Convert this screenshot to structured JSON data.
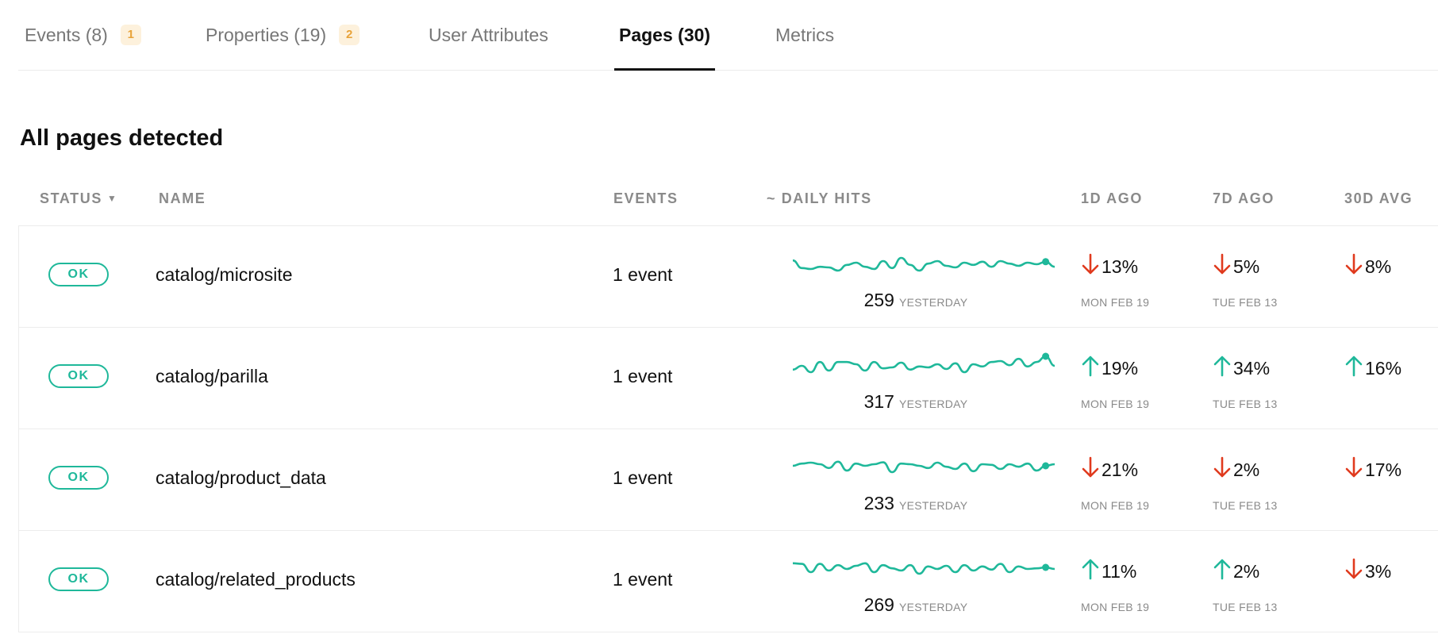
{
  "tabs": [
    {
      "label": "Events (8)",
      "badge": "1",
      "active": false
    },
    {
      "label": "Properties (19)",
      "badge": "2",
      "active": false
    },
    {
      "label": "User Attributes",
      "badge": null,
      "active": false
    },
    {
      "label": "Pages (30)",
      "badge": null,
      "active": true
    },
    {
      "label": "Metrics",
      "badge": null,
      "active": false
    }
  ],
  "section_title": "All pages detected",
  "columns": {
    "status": "STATUS",
    "name": "NAME",
    "events": "EVENTS",
    "daily_hits": "~ DAILY HITS",
    "d1": "1D AGO",
    "d7": "7D AGO",
    "d30": "30D AVG"
  },
  "colors": {
    "accent": "#1fb89a",
    "down": "#e03a1e",
    "up": "#1fb89a",
    "badge_bg": "#fdf1dc",
    "badge_text": "#e8a33a"
  },
  "rows": [
    {
      "status": "OK",
      "name": "catalog/microsite",
      "events": "1 event",
      "hits": "259",
      "hits_label": "YESTERDAY",
      "spark": [
        0.62,
        0.38,
        0.35,
        0.42,
        0.4,
        0.3,
        0.48,
        0.55,
        0.42,
        0.35,
        0.6,
        0.38,
        0.7,
        0.48,
        0.3,
        0.52,
        0.6,
        0.45,
        0.4,
        0.55,
        0.48,
        0.58,
        0.42,
        0.6,
        0.52,
        0.45,
        0.55,
        0.5,
        0.58,
        0.42
      ],
      "d1": {
        "dir": "down",
        "value": "13%",
        "date": "MON FEB 19"
      },
      "d7": {
        "dir": "down",
        "value": "5%",
        "date": "TUE FEB 13"
      },
      "d30": {
        "dir": "down",
        "value": "8%"
      }
    },
    {
      "status": "OK",
      "name": "catalog/parilla",
      "events": "1 event",
      "hits": "317",
      "hits_label": "YESTERDAY",
      "spark": [
        0.38,
        0.5,
        0.3,
        0.62,
        0.35,
        0.62,
        0.62,
        0.55,
        0.35,
        0.62,
        0.42,
        0.45,
        0.6,
        0.38,
        0.48,
        0.45,
        0.55,
        0.4,
        0.58,
        0.3,
        0.55,
        0.48,
        0.62,
        0.65,
        0.52,
        0.72,
        0.48,
        0.62,
        0.8,
        0.5
      ],
      "d1": {
        "dir": "up",
        "value": "19%",
        "date": "MON FEB 19"
      },
      "d7": {
        "dir": "up",
        "value": "34%",
        "date": "TUE FEB 13"
      },
      "d30": {
        "dir": "up",
        "value": "16%"
      }
    },
    {
      "status": "OK",
      "name": "catalog/product_data",
      "events": "1 event",
      "hits": "233",
      "hits_label": "YESTERDAY",
      "spark": [
        0.55,
        0.62,
        0.65,
        0.6,
        0.48,
        0.68,
        0.4,
        0.62,
        0.55,
        0.6,
        0.66,
        0.35,
        0.62,
        0.6,
        0.55,
        0.48,
        0.65,
        0.52,
        0.45,
        0.62,
        0.38,
        0.6,
        0.58,
        0.45,
        0.6,
        0.52,
        0.62,
        0.4,
        0.55,
        0.6
      ],
      "d1": {
        "dir": "down",
        "value": "21%",
        "date": "MON FEB 19"
      },
      "d7": {
        "dir": "down",
        "value": "2%",
        "date": "TUE FEB 13"
      },
      "d30": {
        "dir": "down",
        "value": "17%"
      }
    },
    {
      "status": "OK",
      "name": "catalog/related_products",
      "events": "1 event",
      "hits": "269",
      "hits_label": "YESTERDAY",
      "spark": [
        0.68,
        0.66,
        0.4,
        0.66,
        0.45,
        0.62,
        0.5,
        0.6,
        0.68,
        0.4,
        0.62,
        0.52,
        0.45,
        0.62,
        0.35,
        0.58,
        0.5,
        0.6,
        0.4,
        0.62,
        0.45,
        0.58,
        0.48,
        0.66,
        0.4,
        0.58,
        0.5,
        0.52,
        0.55,
        0.5
      ],
      "d1": {
        "dir": "up",
        "value": "11%",
        "date": "MON FEB 19"
      },
      "d7": {
        "dir": "up",
        "value": "2%",
        "date": "TUE FEB 13"
      },
      "d30": {
        "dir": "down",
        "value": "3%"
      }
    }
  ]
}
